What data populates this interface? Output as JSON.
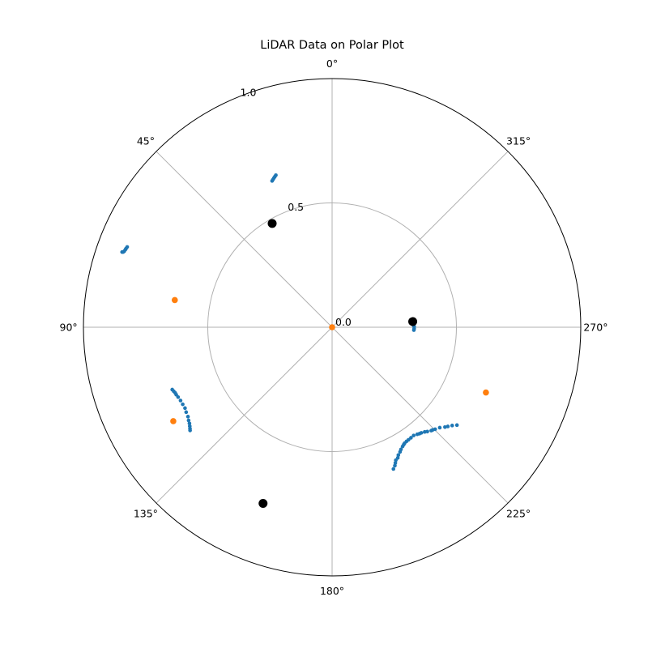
{
  "chart_data": {
    "type": "scatter",
    "projection": "polar",
    "title": "LiDAR Data on Polar Plot",
    "theta_zero": "top",
    "theta_direction": "counterclockwise",
    "rlim": [
      0,
      1
    ],
    "grid": true,
    "angle_ticks": [
      "0°",
      "45°",
      "90°",
      "135°",
      "180°",
      "225°",
      "270°",
      "315°"
    ],
    "angle_tick_values": [
      0,
      45,
      90,
      135,
      180,
      225,
      270,
      315
    ],
    "radial_ticks": [
      "0.0",
      "0.5",
      "1.0"
    ],
    "radial_tick_values": [
      0.0,
      0.5,
      1.0
    ],
    "colors": {
      "blue": "#1f77b4",
      "orange": "#ff7f0e",
      "black": "#000000",
      "grid": "#b0b0b0"
    },
    "series": [
      {
        "color": "#1f77b4",
        "marker": "small-dot",
        "points": [
          [
            22.3,
            0.636
          ],
          [
            21.8,
            0.64
          ],
          [
            21.3,
            0.644
          ],
          [
            20.8,
            0.648
          ],
          [
            20.3,
            0.652
          ],
          [
            70.3,
            0.897
          ],
          [
            70.2,
            0.893
          ],
          [
            69.9,
            0.89
          ],
          [
            69.4,
            0.888
          ],
          [
            69.1,
            0.887
          ],
          [
            68.6,
            0.885
          ],
          [
            -86.0,
            0.322
          ],
          [
            -87.0,
            0.325
          ],
          [
            -88.5,
            0.327
          ],
          [
            -89.5,
            0.33
          ],
          [
            -91.0,
            0.33
          ],
          [
            -92.0,
            0.329
          ]
        ]
      },
      {
        "color": "#1f77b4",
        "marker": "small-dot",
        "points": [
          [
            111.3,
            0.69
          ],
          [
            112.0,
            0.687
          ],
          [
            112.7,
            0.684
          ],
          [
            113.4,
            0.683
          ],
          [
            114.4,
            0.68
          ],
          [
            115.8,
            0.677
          ],
          [
            117.3,
            0.676
          ],
          [
            118.8,
            0.675
          ],
          [
            120.2,
            0.679
          ],
          [
            121.8,
            0.682
          ],
          [
            123.0,
            0.688
          ],
          [
            124.0,
            0.692
          ],
          [
            124.8,
            0.697
          ],
          [
            125.5,
            0.702
          ],
          [
            126.0,
            0.706
          ]
        ]
      },
      {
        "color": "#1f77b4",
        "marker": "small-dot",
        "points": [
          [
            -128.1,
            0.638
          ],
          [
            -129.3,
            0.624
          ],
          [
            -130.6,
            0.613
          ],
          [
            -131.5,
            0.606
          ],
          [
            -133.0,
            0.592
          ],
          [
            -134.7,
            0.583
          ],
          [
            -135.6,
            0.578
          ],
          [
            -136.2,
            0.576
          ],
          [
            -137.6,
            0.568
          ],
          [
            -138.5,
            0.562
          ],
          [
            -139.8,
            0.556
          ],
          [
            -140.6,
            0.554
          ],
          [
            -141.5,
            0.55
          ],
          [
            -143.0,
            0.545
          ],
          [
            -144.5,
            0.546
          ],
          [
            -145.8,
            0.547
          ],
          [
            -146.9,
            0.548
          ],
          [
            -148.0,
            0.55
          ],
          [
            -148.6,
            0.553
          ],
          [
            -149.4,
            0.557
          ],
          [
            -150.6,
            0.564
          ],
          [
            -151.4,
            0.571
          ],
          [
            -152.6,
            0.579
          ],
          [
            -153.3,
            0.588
          ],
          [
            -154.4,
            0.593
          ],
          [
            -155.0,
            0.602
          ],
          [
            -155.6,
            0.611
          ],
          [
            -156.6,
            0.621
          ]
        ]
      },
      {
        "color": "#1f77b4",
        "marker": "small-dot",
        "points": [
          [
            158.6,
            0.758
          ],
          [
            158.3,
            0.757
          ],
          [
            158.1,
            0.756
          ],
          [
            158.0,
            0.755
          ],
          [
            158.3,
            0.753
          ]
        ]
      },
      {
        "color": "#ff7f0e",
        "marker": "dot",
        "points": [
          [
            0.0,
            0.0
          ],
          [
            80.2,
            0.642
          ],
          [
            120.6,
            0.742
          ],
          [
            -113.0,
            0.672
          ]
        ]
      },
      {
        "color": "#000000",
        "marker": "large-dot",
        "points": [
          [
            30.0,
            0.482
          ],
          [
            -86.0,
            0.325
          ],
          [
            158.6,
            0.761
          ]
        ]
      }
    ]
  }
}
